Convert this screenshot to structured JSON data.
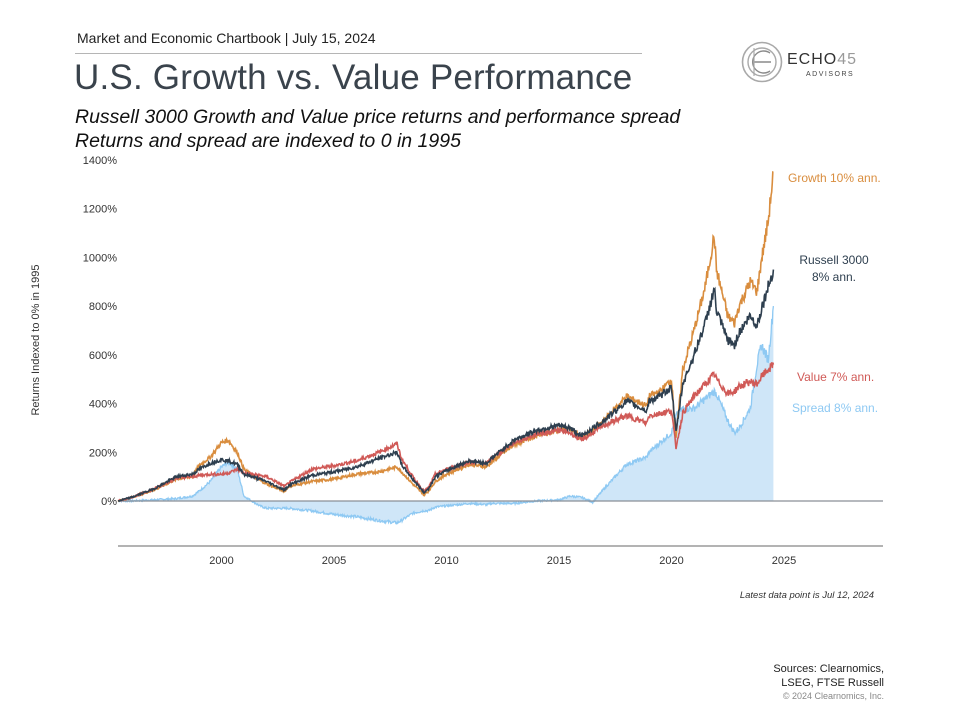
{
  "header": {
    "chartbook_line": "Market and Economic Chartbook | July 15, 2024",
    "title": "U.S. Growth vs. Value Performance",
    "subtitle_line1": "Russell 3000 Growth and Value price returns and performance spread",
    "subtitle_line2": "Returns and spread are indexed to 0 in 1995"
  },
  "logo": {
    "name_main": "ECHO",
    "name_num": "45",
    "sub": "ADVISORS",
    "icon": "echo45-ring-logo-icon"
  },
  "colors": {
    "growth": "#d98d3e",
    "russell": "#2e3f4f",
    "value": "#d05a57",
    "spread_line": "#8ec9f3",
    "spread_fill": "#cfe6f8",
    "zero_line": "#8a8f96",
    "axis_line": "#9a9a9a"
  },
  "chart_data": {
    "type": "line",
    "title": "U.S. Growth vs. Value Performance",
    "xlabel": "",
    "ylabel": "Returns Indexed to 0% in 1995",
    "xlim": [
      1995.4,
      2029.4
    ],
    "ylim": [
      -200,
      1400
    ],
    "x_ticks": [
      2000,
      2005,
      2010,
      2015,
      2020,
      2025
    ],
    "x_tick_labels": [
      "2000",
      "2005",
      "2010",
      "2015",
      "2020",
      "2025"
    ],
    "y_ticks": [
      0,
      200,
      400,
      600,
      800,
      1000,
      1200,
      1400
    ],
    "y_tick_labels": [
      "0%",
      "200%",
      "400%",
      "600%",
      "800%",
      "1000%",
      "1200%",
      "1400%"
    ],
    "grid": false,
    "legend": "end-of-line labels (right)",
    "x": [
      1995.4,
      1996,
      1997,
      1998,
      1998.7,
      1999,
      1999.5,
      2000,
      2000.3,
      2000.7,
      2001,
      2001.7,
      2002,
      2002.8,
      2003,
      2004,
      2005,
      2006,
      2007,
      2007.8,
      2008,
      2008.5,
      2009.0,
      2009.2,
      2009.5,
      2010,
      2011,
      2011.8,
      2012,
      2013,
      2014,
      2015,
      2015.5,
      2016,
      2016.5,
      2017,
      2018,
      2018.9,
      2019,
      2019.5,
      2020,
      2020.2,
      2020.5,
      2021,
      2021.5,
      2021.9,
      2022,
      2022.5,
      2022.8,
      2023,
      2023.5,
      2023.8,
      2024,
      2024.3,
      2024.53
    ],
    "series": [
      {
        "name": "Growth",
        "label": "Growth 10% ann.",
        "values": [
          0,
          15,
          45,
          90,
          100,
          145,
          180,
          240,
          250,
          200,
          130,
          85,
          70,
          40,
          60,
          80,
          90,
          110,
          120,
          140,
          120,
          70,
          25,
          40,
          80,
          110,
          150,
          140,
          160,
          230,
          270,
          290,
          300,
          260,
          290,
          330,
          430,
          390,
          430,
          450,
          500,
          260,
          540,
          700,
          880,
          1090,
          950,
          760,
          730,
          800,
          900,
          860,
          990,
          1150,
          1350
        ]
      },
      {
        "name": "Russell 3000",
        "label_line1": "Russell 3000",
        "label_line2": "8% ann.",
        "values": [
          0,
          15,
          50,
          100,
          110,
          130,
          155,
          170,
          165,
          150,
          110,
          90,
          80,
          45,
          65,
          105,
          120,
          140,
          175,
          200,
          150,
          90,
          35,
          50,
          100,
          125,
          165,
          155,
          175,
          250,
          290,
          310,
          300,
          265,
          300,
          330,
          410,
          370,
          410,
          430,
          470,
          280,
          480,
          600,
          730,
          870,
          780,
          660,
          640,
          690,
          760,
          720,
          790,
          880,
          950
        ]
      },
      {
        "name": "Value",
        "label": "Value 7% ann.",
        "values": [
          0,
          15,
          50,
          95,
          100,
          105,
          110,
          110,
          115,
          130,
          115,
          105,
          100,
          60,
          75,
          130,
          145,
          165,
          200,
          235,
          175,
          100,
          40,
          55,
          110,
          130,
          160,
          155,
          175,
          240,
          275,
          290,
          280,
          250,
          280,
          310,
          350,
          320,
          350,
          360,
          370,
          220,
          360,
          430,
          480,
          520,
          500,
          440,
          450,
          470,
          490,
          480,
          510,
          540,
          560
        ]
      },
      {
        "name": "Spread",
        "label": "Spread 8% ann.",
        "type": "area",
        "values": [
          0,
          0,
          5,
          10,
          20,
          40,
          80,
          140,
          160,
          130,
          20,
          -20,
          -30,
          -30,
          -30,
          -40,
          -55,
          -65,
          -80,
          -90,
          -80,
          -50,
          -40,
          -40,
          -25,
          -20,
          -10,
          -15,
          -10,
          -10,
          0,
          5,
          20,
          15,
          -5,
          50,
          150,
          180,
          200,
          240,
          280,
          350,
          380,
          380,
          420,
          450,
          440,
          330,
          280,
          300,
          380,
          560,
          640,
          580,
          800
        ]
      }
    ],
    "annotations": [
      "Latest data point is Jul 12, 2024"
    ]
  },
  "footer": {
    "latest_note": "Latest data point is Jul 12, 2024",
    "sources_line1": "Sources: Clearnomics,",
    "sources_line2": "LSEG, FTSE Russell",
    "copyright": "© 2024 Clearnomics, Inc."
  }
}
